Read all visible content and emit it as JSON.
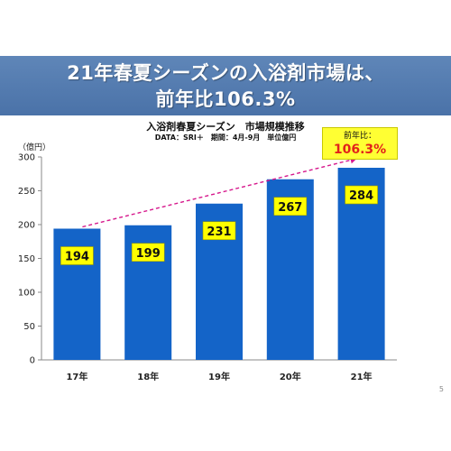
{
  "slide": {
    "title_line1": "21年春夏シーズンの入浴剤市場は、",
    "title_line2": "前年比106.3%",
    "page_number": "5"
  },
  "callout": {
    "label": "前年比：",
    "value": "106.3%"
  },
  "colors": {
    "bar": "#1464c8",
    "banner": "#4f77ad",
    "label_bg": "#ffff00",
    "trend_arrow": "#d6188c",
    "callout_value": "#e2231a"
  },
  "chart_data": {
    "type": "bar",
    "title": "入浴剤春夏シーズン　市場規模推移",
    "subtitle": "DATA：SRI＋　期間：4月-9月　単位億円",
    "ylabel": "（億円）",
    "categories": [
      "17年",
      "18年",
      "19年",
      "20年",
      "21年"
    ],
    "values": [
      194,
      199,
      231,
      267,
      284
    ],
    "ylim": [
      0,
      300
    ],
    "yticks": [
      0,
      50,
      100,
      150,
      200,
      250,
      300
    ],
    "grid": false,
    "legend": "none",
    "trend": {
      "from": "17年",
      "to": "21年",
      "style": "dashed-arrow"
    }
  }
}
